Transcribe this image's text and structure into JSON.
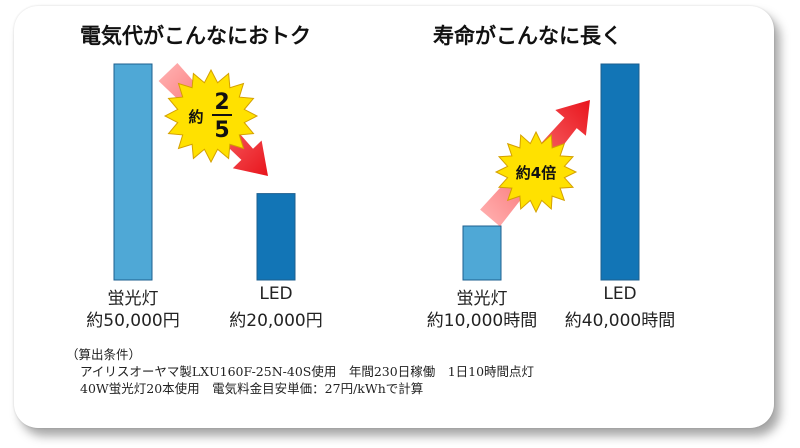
{
  "chart_data": [
    {
      "type": "bar",
      "title": "電気代がこんなにおトク",
      "categories": [
        "蛍光灯",
        "LED"
      ],
      "values": [
        50000,
        20000
      ],
      "value_labels": [
        "約50,000円",
        "約20,000円"
      ],
      "unit": "円",
      "ylim": [
        0,
        50000
      ],
      "colors": [
        "#4fa8d6",
        "#1275b6"
      ],
      "grid": false,
      "annotation": {
        "prefix": "約",
        "numerator": "2",
        "denominator": "5",
        "direction": "down"
      }
    },
    {
      "type": "bar",
      "title": "寿命がこんなに長く",
      "categories": [
        "蛍光灯",
        "LED"
      ],
      "values": [
        10000,
        40000
      ],
      "value_labels": [
        "約10,000時間",
        "約40,000時間"
      ],
      "unit": "時間",
      "ylim": [
        0,
        40000
      ],
      "colors": [
        "#4fa8d6",
        "#1275b6"
      ],
      "grid": false,
      "annotation": {
        "text": "約4倍",
        "direction": "up"
      }
    }
  ],
  "footnote": {
    "heading": "（算出条件）",
    "line1": "アイリスオーヤマ製LXU160F-25N-40S使用　年間230日稼働　1日10時間点灯",
    "line2": "40W蛍光灯20本使用　電気料金目安単価：27円/kWhで計算"
  }
}
